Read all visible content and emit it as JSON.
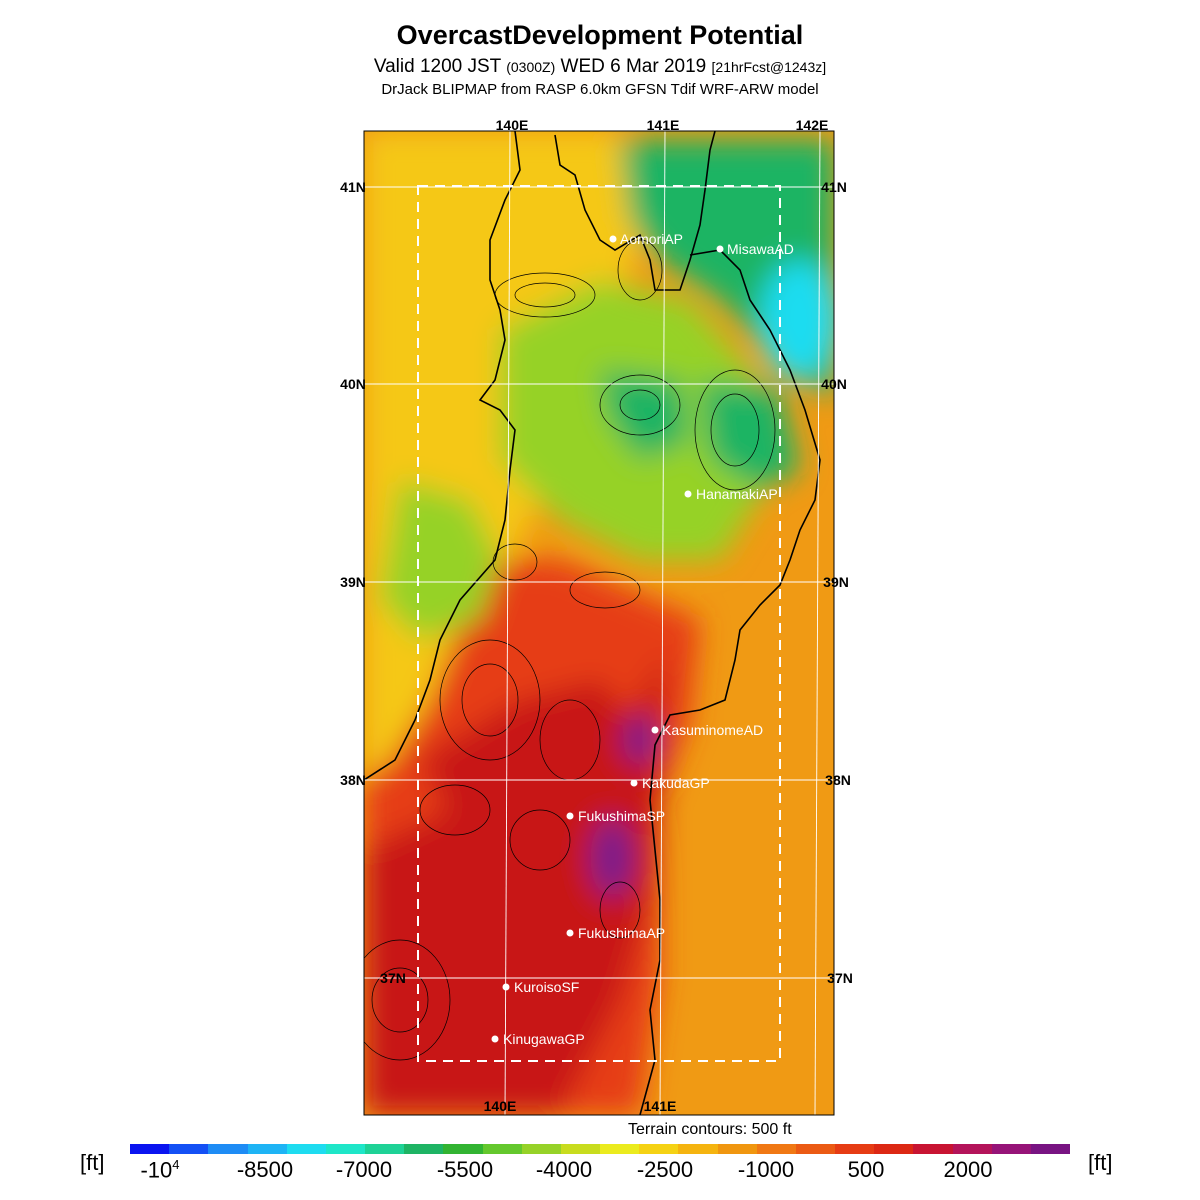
{
  "title": "OvercastDevelopment Potential",
  "subtitle": {
    "valid": "Valid 1200 JST",
    "zulu": "(0300Z)",
    "date": "WED 6 Mar 2019",
    "fcst": "[21hrFcst@1243z]"
  },
  "model_line": "DrJack BLIPMAP from RASP 6.0km GFSN Tdif WRF-ARW model",
  "map": {
    "lon_labels_top": [
      "140E",
      "141E",
      "142E"
    ],
    "lon_labels_bottom": [
      "140E",
      "141E"
    ],
    "lat_labels": [
      "41N",
      "40N",
      "39N",
      "38N",
      "37N"
    ],
    "stations": [
      {
        "name": "AomoriAP"
      },
      {
        "name": "MisawaAD"
      },
      {
        "name": "HanamakiAP"
      },
      {
        "name": "KasuminomeAD"
      },
      {
        "name": "KakudaGP"
      },
      {
        "name": "FukushimaSP"
      },
      {
        "name": "FukushimaAP"
      },
      {
        "name": "KuroisoSF"
      },
      {
        "name": "KinugawaGP"
      }
    ]
  },
  "terrain_note": "Terrain contours: 500 ft",
  "legend": {
    "unit": "[ft]",
    "labels": [
      "-10",
      "-8500",
      "-7000",
      "-5500",
      "-4000",
      "-2500",
      "-1000",
      "500",
      "2000"
    ],
    "first_label_exponent": "4",
    "colors": [
      "#0a14f0",
      "#1450f5",
      "#1e8cf5",
      "#1eb4f5",
      "#1edcf0",
      "#1ee6c8",
      "#1ed296",
      "#1eb464",
      "#32b432",
      "#64c82d",
      "#96d228",
      "#c8dc1e",
      "#ebeb1e",
      "#f5d214",
      "#f5b40f",
      "#f0960f",
      "#f07814",
      "#eb5a14",
      "#e63c14",
      "#dc2814",
      "#c81432",
      "#b4145a",
      "#961478",
      "#781482"
    ],
    "field_colors": {
      "land_warm": "#e63c14",
      "land_hot": "#c81414",
      "peak": "#7a1a8c",
      "ocean": "#f09a14",
      "mid": "#f5c814",
      "cool": "#96d228",
      "cold": "#1eb464",
      "coldest": "#1edcf0"
    }
  }
}
